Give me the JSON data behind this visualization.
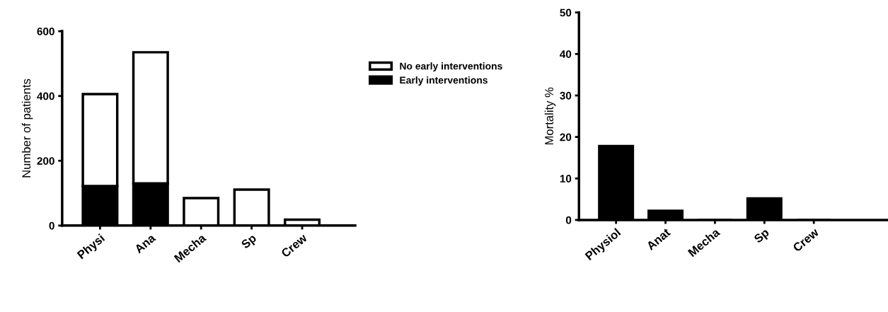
{
  "chart_data": [
    {
      "type": "bar",
      "stacked": true,
      "ylabel": "Number of patients",
      "categories": [
        "Physi",
        "Ana",
        "Mecha",
        "Sp",
        "Crew"
      ],
      "series": [
        {
          "name": "Early interventions",
          "color": "#000000",
          "values": [
            122,
            130,
            0,
            0,
            0
          ]
        },
        {
          "name": "No early interventions",
          "color": "#ffffff",
          "values": [
            284,
            405,
            85,
            111,
            18
          ]
        }
      ],
      "ylim": [
        0,
        600
      ],
      "yticks": [
        0,
        200,
        400,
        600
      ],
      "legend": "right",
      "grid": false
    },
    {
      "type": "bar",
      "ylabel": "Mortality %",
      "categories": [
        "Physiol",
        "Anat",
        "Mecha",
        "Sp",
        "Crew"
      ],
      "series": [
        {
          "color": "#000000",
          "values": [
            17.8,
            2.2,
            0,
            5.2,
            0
          ]
        }
      ],
      "ylim": [
        0,
        50
      ],
      "yticks": [
        0,
        10,
        20,
        30,
        40,
        50
      ],
      "grid": false
    }
  ]
}
